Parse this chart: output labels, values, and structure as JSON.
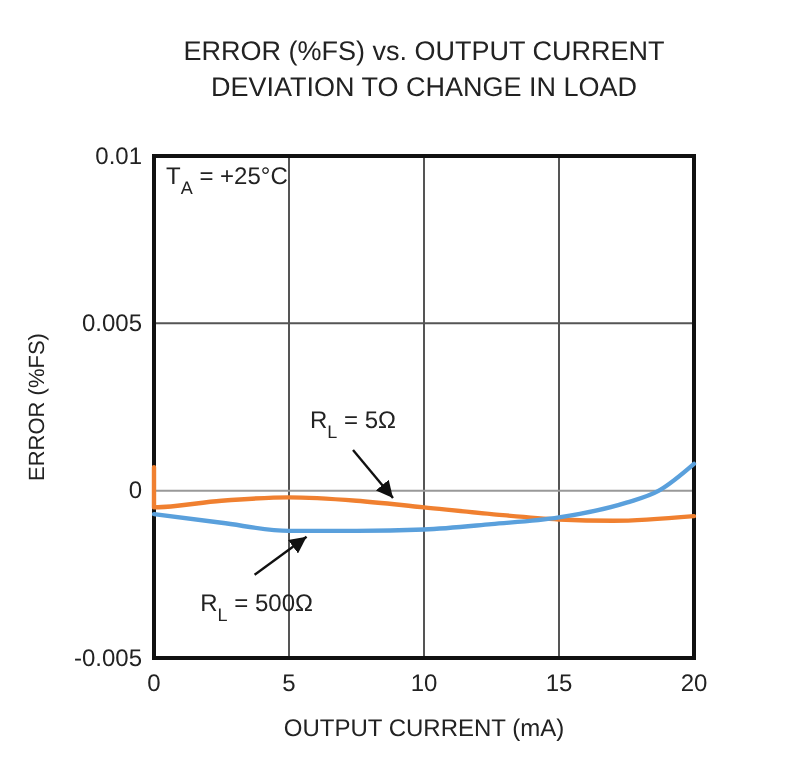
{
  "chart_data": {
    "type": "line",
    "title": "ERROR (%FS) vs. OUTPUT CURRENT",
    "subtitle": "DEVIATION TO CHANGE IN LOAD",
    "xlabel": "OUTPUT CURRENT (mA)",
    "ylabel": "ERROR (%FS)",
    "xlim": [
      0,
      20
    ],
    "xticks": [
      0,
      5,
      10,
      15,
      20
    ],
    "ylim": [
      -0.005,
      0.01
    ],
    "yticks": [
      -0.005,
      0,
      0.005,
      0.01
    ],
    "grid": true,
    "series": [
      {
        "color": "#f08030",
        "x": [
          0,
          0,
          2.5,
          5,
          7.5,
          10,
          12.5,
          15,
          17,
          20
        ],
        "values": [
          0.0007,
          -0.0005,
          -0.0003,
          -0.0002,
          -0.0003,
          -0.0005,
          -0.0007,
          -0.00086,
          -0.0009,
          -0.00076
        ]
      },
      {
        "color": "#5aa0dc",
        "x": [
          0,
          2.5,
          5,
          7.5,
          10,
          12.5,
          15,
          17.5,
          18.7,
          20
        ],
        "values": [
          -0.0007,
          -0.00096,
          -0.0012,
          -0.0012,
          -0.00116,
          -0.001,
          -0.0008,
          -0.00036,
          0,
          0.0008
        ]
      }
    ],
    "annotations": [
      "T$_{A}$ = +25°C",
      {
        "text": "R$_{L}$ = 5Ω",
        "x": 9,
        "y": -0.0004
      },
      {
        "text": "R$_{L}$ = 500Ω",
        "x": 5.8,
        "y": -0.0012
      }
    ]
  }
}
